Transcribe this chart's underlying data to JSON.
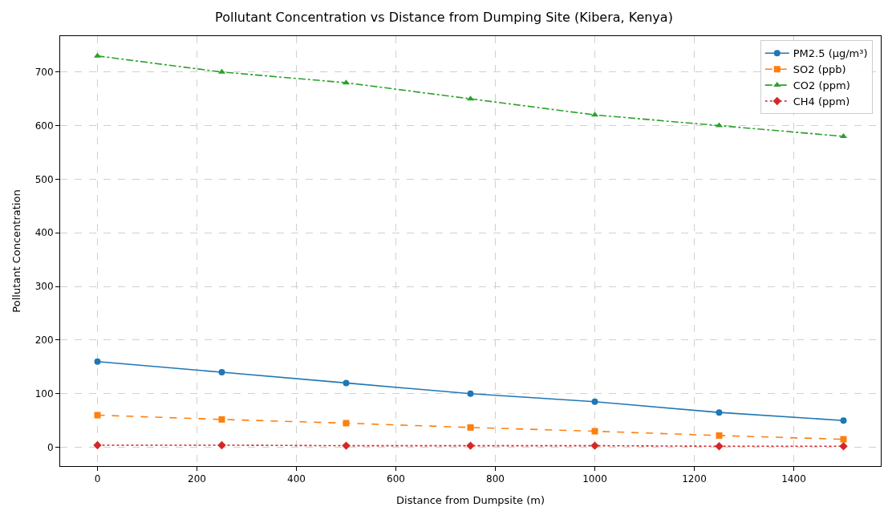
{
  "chart_data": {
    "type": "line",
    "title": "Pollutant Concentration vs Distance from Dumping Site (Kibera, Kenya)",
    "xlabel": "Distance from Dumpsite (m)",
    "ylabel": "Pollutant Concentration",
    "x": [
      0,
      250,
      500,
      750,
      1000,
      1250,
      1500
    ],
    "series": [
      {
        "name": "PM2.5 (µg/m³)",
        "color": "#1f77b4",
        "marker": "circle",
        "line_style": "solid",
        "values": [
          160,
          140,
          120,
          100,
          85,
          65,
          50
        ]
      },
      {
        "name": "SO2 (ppb)",
        "color": "#ff7f0e",
        "marker": "square",
        "line_style": "dashed",
        "values": [
          60,
          52,
          45,
          37,
          30,
          22,
          15
        ]
      },
      {
        "name": "CO2 (ppm)",
        "color": "#2ca02c",
        "marker": "triangle",
        "line_style": "dashdot",
        "values": [
          730,
          700,
          680,
          650,
          620,
          600,
          580
        ]
      },
      {
        "name": "CH4 (ppm)",
        "color": "#d62728",
        "marker": "diamond",
        "line_style": "dotted",
        "values": [
          4,
          4,
          3,
          3,
          3,
          2,
          2
        ]
      }
    ],
    "xlim": [
      -75,
      1575
    ],
    "xticks": [
      0,
      200,
      400,
      600,
      800,
      1000,
      1200,
      1400
    ],
    "ylim": [
      -35,
      767
    ],
    "yticks": [
      0,
      100,
      200,
      300,
      400,
      500,
      600,
      700
    ],
    "grid": true,
    "legend": "top right"
  }
}
